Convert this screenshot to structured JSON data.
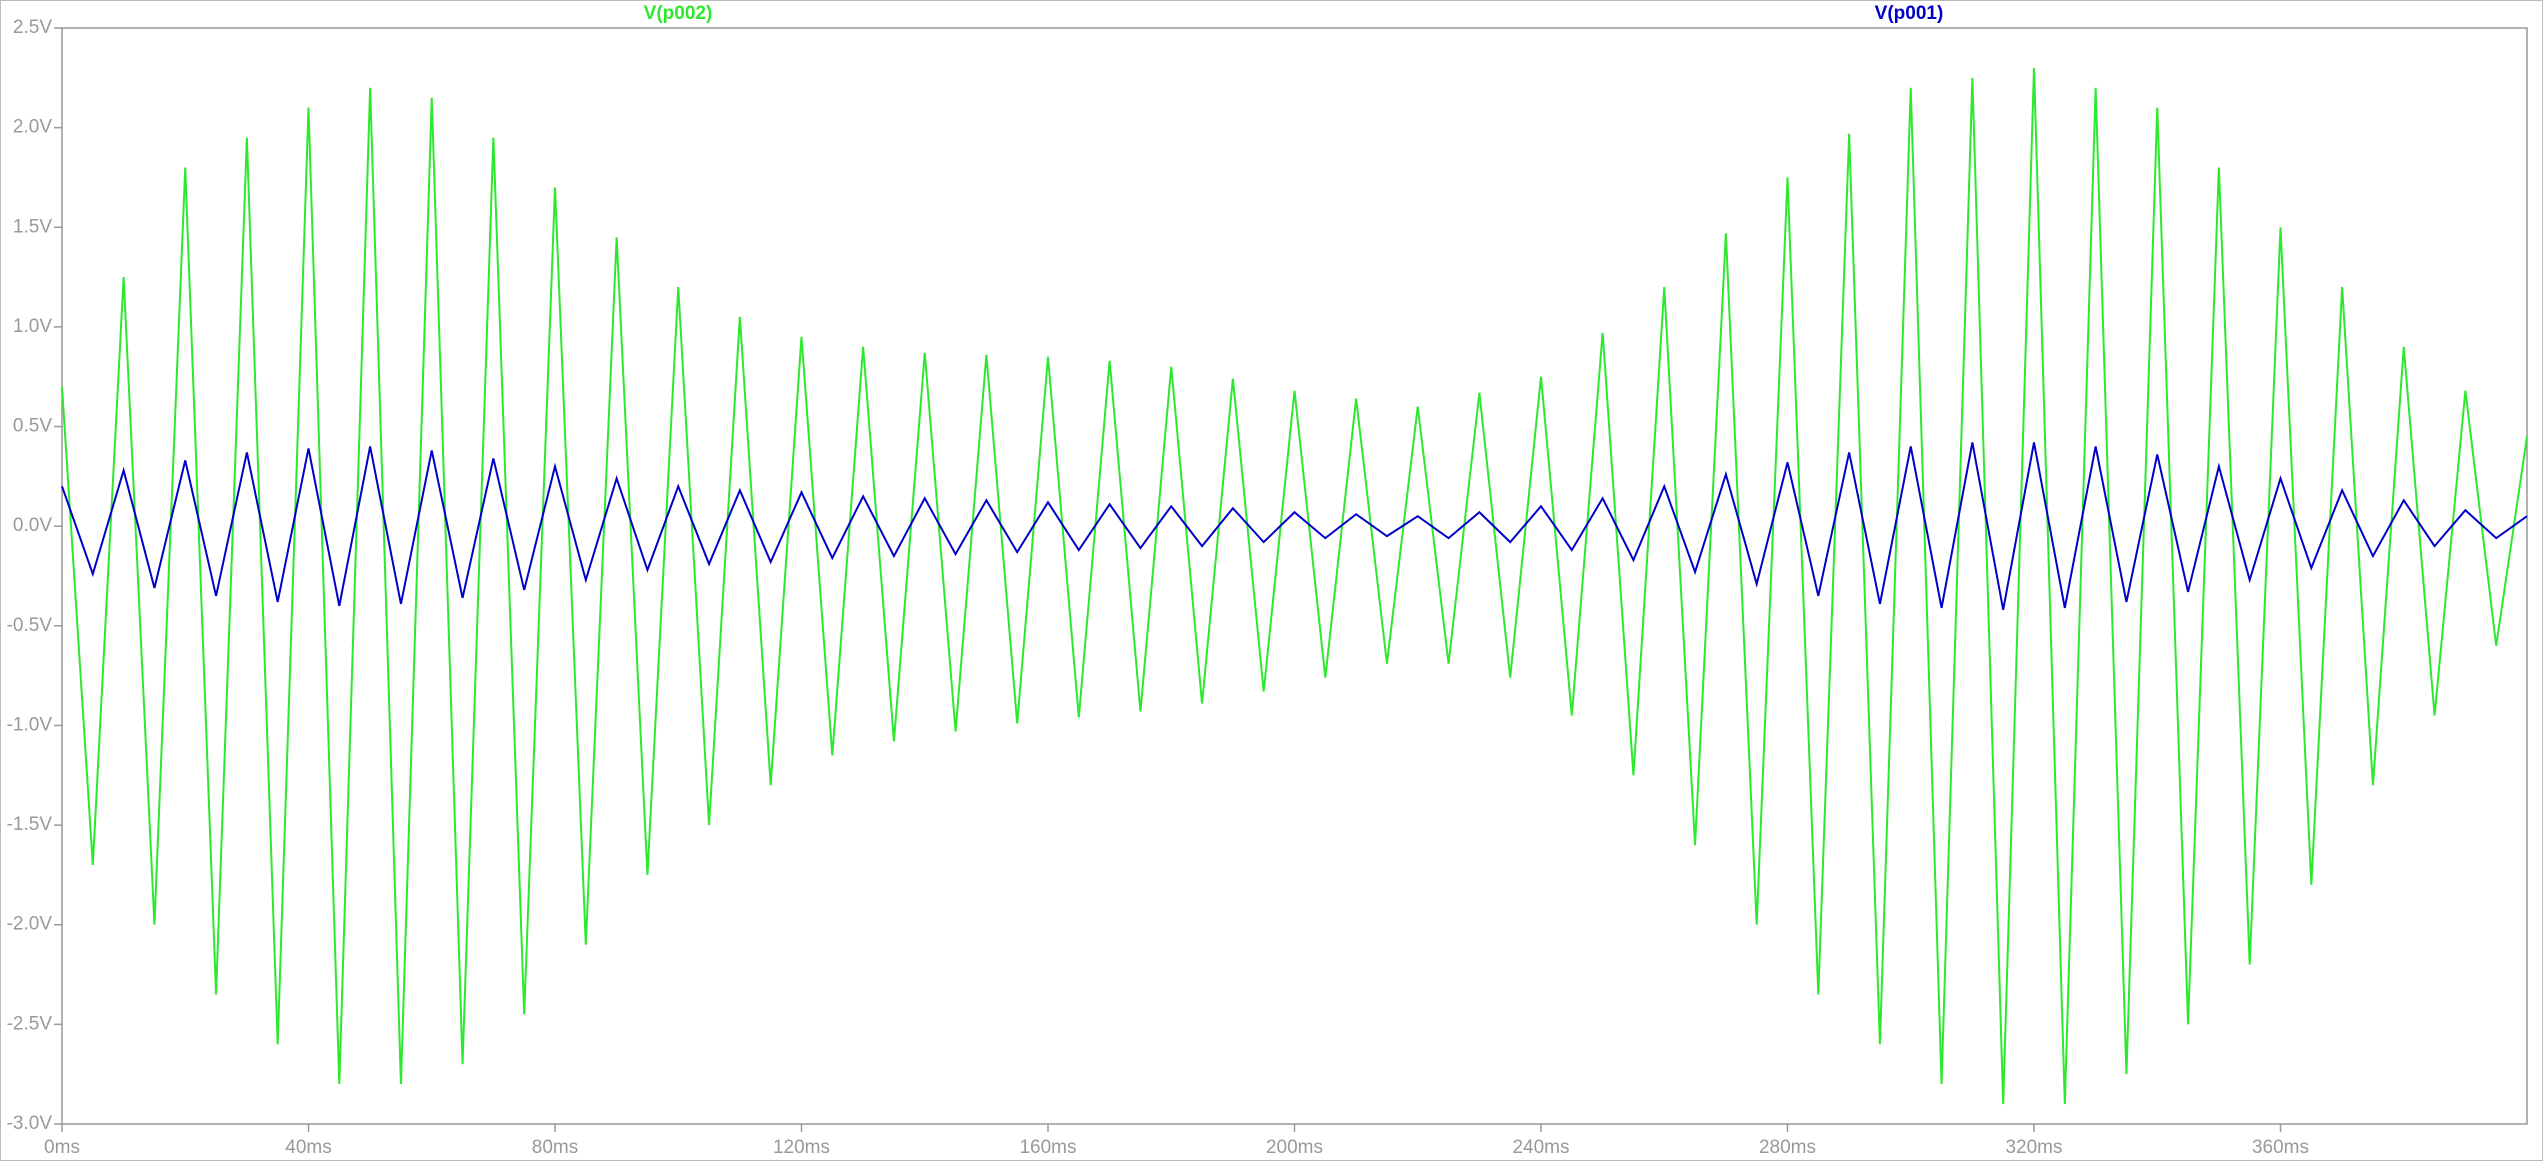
{
  "chart_data": {
    "type": "line",
    "x": [
      0,
      5,
      10,
      15,
      20,
      25,
      30,
      35,
      40,
      45,
      50,
      55,
      60,
      65,
      70,
      75,
      80,
      85,
      90,
      95,
      100,
      105,
      110,
      115,
      120,
      125,
      130,
      135,
      140,
      145,
      150,
      155,
      160,
      165,
      170,
      175,
      180,
      185,
      190,
      195,
      200,
      205,
      210,
      215,
      220,
      225,
      230,
      235,
      240,
      245,
      250,
      255,
      260,
      265,
      270,
      275,
      280,
      285,
      290,
      295,
      300,
      305,
      310,
      315,
      320,
      325,
      330,
      335,
      340,
      345,
      350,
      355,
      360,
      365,
      370,
      375,
      380,
      385,
      390,
      395,
      400
    ],
    "series": [
      {
        "name": "V(p002)",
        "color": "#2ee82e",
        "values": [
          0.7,
          -1.7,
          1.25,
          -2.0,
          1.8,
          -2.35,
          1.95,
          -2.6,
          2.1,
          -2.8,
          2.2,
          -2.8,
          2.15,
          -2.7,
          1.95,
          -2.45,
          1.7,
          -2.1,
          1.45,
          -1.75,
          1.2,
          -1.5,
          1.05,
          -1.3,
          0.95,
          -1.15,
          0.9,
          -1.08,
          0.87,
          -1.03,
          0.86,
          -0.99,
          0.85,
          -0.96,
          0.83,
          -0.93,
          0.8,
          -0.89,
          0.74,
          -0.83,
          0.68,
          -0.76,
          0.64,
          -0.69,
          0.6,
          -0.69,
          0.67,
          -0.76,
          0.75,
          -0.95,
          0.97,
          -1.25,
          1.2,
          -1.6,
          1.47,
          -2.0,
          1.75,
          -2.35,
          1.97,
          -2.6,
          2.2,
          -2.8,
          2.25,
          -2.9,
          2.3,
          -2.9,
          2.2,
          -2.75,
          2.1,
          -2.5,
          1.8,
          -2.2,
          1.5,
          -1.8,
          1.2,
          -1.3,
          0.9,
          -0.95,
          0.68,
          -0.6,
          0.45
        ]
      },
      {
        "name": "V(p001)",
        "color": "#0000c8",
        "values": [
          0.2,
          -0.24,
          0.28,
          -0.31,
          0.33,
          -0.35,
          0.37,
          -0.38,
          0.39,
          -0.4,
          0.4,
          -0.39,
          0.38,
          -0.36,
          0.34,
          -0.32,
          0.3,
          -0.27,
          0.24,
          -0.22,
          0.2,
          -0.19,
          0.18,
          -0.18,
          0.17,
          -0.16,
          0.15,
          -0.15,
          0.14,
          -0.14,
          0.13,
          -0.13,
          0.12,
          -0.12,
          0.11,
          -0.11,
          0.1,
          -0.1,
          0.09,
          -0.08,
          0.07,
          -0.06,
          0.06,
          -0.05,
          0.05,
          -0.06,
          0.07,
          -0.08,
          0.1,
          -0.12,
          0.14,
          -0.17,
          0.2,
          -0.23,
          0.26,
          -0.29,
          0.32,
          -0.35,
          0.37,
          -0.39,
          0.4,
          -0.41,
          0.42,
          -0.42,
          0.42,
          -0.41,
          0.4,
          -0.38,
          0.36,
          -0.33,
          0.3,
          -0.27,
          0.24,
          -0.21,
          0.18,
          -0.15,
          0.13,
          -0.1,
          0.08,
          -0.06,
          0.05
        ]
      }
    ],
    "xlim": [
      0,
      400
    ],
    "ylim": [
      -3.0,
      2.5
    ],
    "xticks": [
      {
        "value": 0,
        "label": "0ms"
      },
      {
        "value": 40,
        "label": "40ms"
      },
      {
        "value": 80,
        "label": "80ms"
      },
      {
        "value": 120,
        "label": "120ms"
      },
      {
        "value": 160,
        "label": "160ms"
      },
      {
        "value": 200,
        "label": "200ms"
      },
      {
        "value": 240,
        "label": "240ms"
      },
      {
        "value": 280,
        "label": "280ms"
      },
      {
        "value": 320,
        "label": "320ms"
      },
      {
        "value": 360,
        "label": "360ms"
      }
    ],
    "yticks": [
      {
        "value": 2.5,
        "label": "2.5V"
      },
      {
        "value": 2.0,
        "label": "2.0V"
      },
      {
        "value": 1.5,
        "label": "1.5V"
      },
      {
        "value": 1.0,
        "label": "1.0V"
      },
      {
        "value": 0.5,
        "label": "0.5V"
      },
      {
        "value": 0.0,
        "label": "0.0V"
      },
      {
        "value": -0.5,
        "label": "-0.5V"
      },
      {
        "value": -1.0,
        "label": "-1.0V"
      },
      {
        "value": -1.5,
        "label": "-1.5V"
      },
      {
        "value": -2.0,
        "label": "-2.0V"
      },
      {
        "value": -2.5,
        "label": "-2.5V"
      },
      {
        "value": -3.0,
        "label": "-3.0V"
      }
    ],
    "grid": false
  }
}
